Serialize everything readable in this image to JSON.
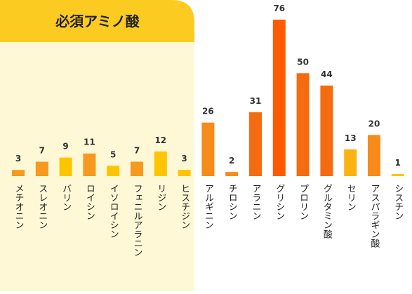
{
  "chart_data": {
    "type": "bar",
    "highlight_label": "必須アミノ酸",
    "categories": [
      "メチオニン",
      "スレオニン",
      "バリン",
      "ロイシン",
      "イソロイシン",
      "フェニルアラニン",
      "リジン",
      "ヒスチジン",
      "アルギニン",
      "チロシン",
      "アラニン",
      "グリシン",
      "プロリン",
      "グルタミン酸",
      "セリン",
      "アスパラギン酸",
      "シスチン"
    ],
    "values": [
      3,
      7,
      9,
      11,
      5,
      7,
      12,
      3,
      26,
      2,
      31,
      76,
      50,
      44,
      13,
      20,
      1
    ],
    "colors": [
      "#f59a1e",
      "#f59a1e",
      "#fcc500",
      "#f59a1e",
      "#fcc500",
      "#f59a1e",
      "#fcc500",
      "#fcc500",
      "#f78b1a",
      "#f78b1a",
      "#f56c10",
      "#ff5a00",
      "#f56c10",
      "#f56c10",
      "#fbb313",
      "#f78b1a",
      "#fcc500"
    ]
  }
}
